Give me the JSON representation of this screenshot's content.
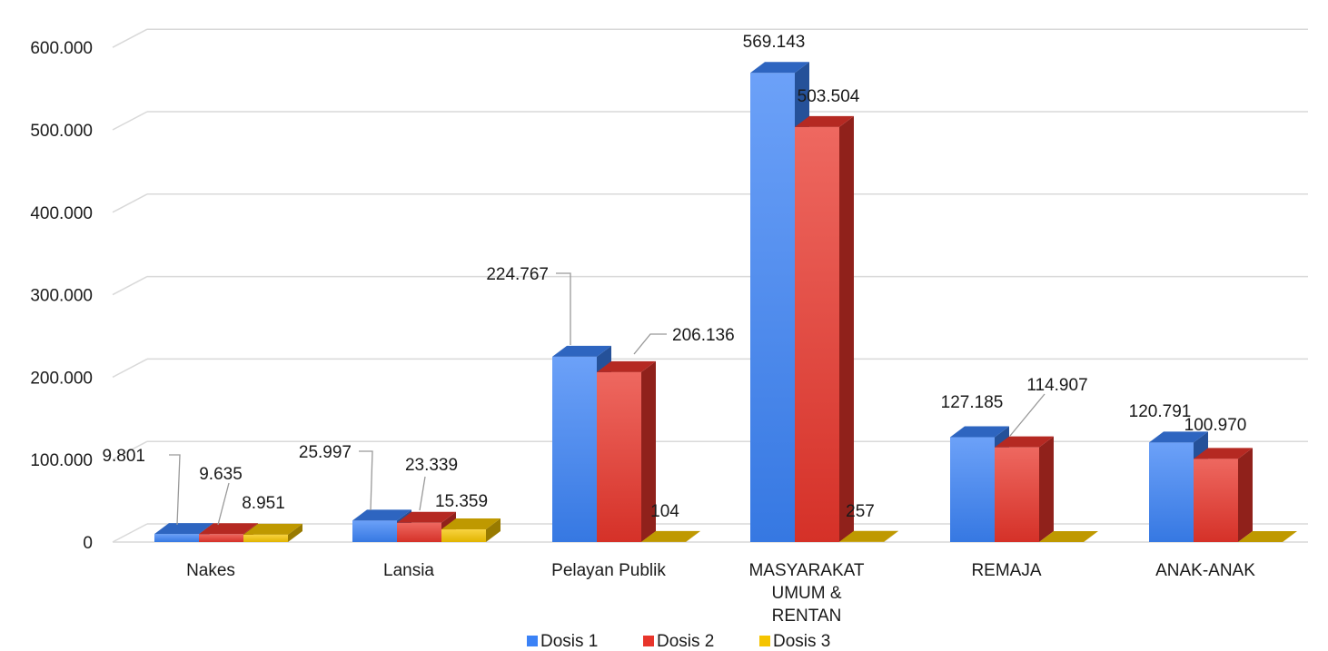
{
  "chart_data": {
    "type": "bar",
    "title": "",
    "xlabel": "",
    "ylabel": "",
    "ylim": [
      0,
      600000
    ],
    "yticks": [
      0,
      100000,
      200000,
      300000,
      400000,
      500000,
      600000
    ],
    "ytick_labels": [
      "0",
      "100.000",
      "200.000",
      "300.000",
      "400.000",
      "500.000",
      "600.000"
    ],
    "grid": true,
    "legend_position": "bottom",
    "categories": [
      [
        "Nakes"
      ],
      [
        "Lansia"
      ],
      [
        "Pelayan Publik"
      ],
      [
        "MASYARAKAT",
        "UMUM &",
        "RENTAN"
      ],
      [
        "REMAJA"
      ],
      [
        "ANAK-ANAK"
      ]
    ],
    "series": [
      {
        "name": "Dosis 1",
        "color": "#3b82f6",
        "values": [
          9801,
          25997,
          224767,
          569143,
          127185,
          120791
        ],
        "labels": [
          "9.801",
          "25.997",
          "224.767",
          "569.143",
          "127.185",
          "120.791"
        ]
      },
      {
        "name": "Dosis 2",
        "color": "#e8352b",
        "values": [
          9635,
          23339,
          206136,
          503504,
          114907,
          100970
        ],
        "labels": [
          "9.635",
          "23.339",
          "206.136",
          "503.504",
          "114.907",
          "100.970"
        ]
      },
      {
        "name": "Dosis 3",
        "color": "#f5c400",
        "values": [
          8951,
          15359,
          104,
          257,
          0,
          0
        ],
        "labels": [
          "8.951",
          "15.359",
          "104",
          "257",
          "",
          ""
        ]
      }
    ]
  }
}
